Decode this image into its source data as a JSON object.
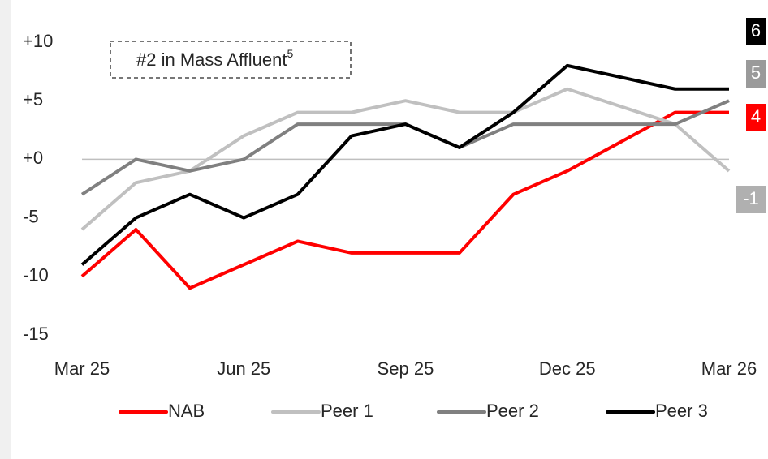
{
  "chart_data": {
    "type": "line",
    "annotation": {
      "text": "#2 in Mass Affluent",
      "superscript": "5"
    },
    "categories": [
      "Mar 25",
      null,
      null,
      "Jun 25",
      null,
      null,
      "Sep 25",
      null,
      null,
      "Dec 25",
      null,
      null,
      "Mar 26"
    ],
    "series": [
      {
        "name": "NAB",
        "color": "#ff0000",
        "label_color": "#ff0000",
        "values": [
          -10,
          -6,
          -11,
          -9,
          -7,
          -8,
          -8,
          -8,
          -3,
          -1,
          1.5,
          4,
          4
        ]
      },
      {
        "name": "Peer 1",
        "color": "#c0c0c0",
        "label_color": "#b0b0b0",
        "values": [
          -6,
          -2,
          -1,
          2,
          4,
          4,
          5,
          4,
          4,
          6,
          4.5,
          3,
          -1
        ]
      },
      {
        "name": "Peer 2",
        "color": "#808080",
        "label_color": "#9a9a9a",
        "values": [
          -3,
          0,
          -1,
          0,
          3,
          3,
          3,
          1,
          3,
          3,
          3,
          3,
          5
        ]
      },
      {
        "name": "Peer 3",
        "color": "#000000",
        "label_color": "#000000",
        "values": [
          -9,
          -5,
          -3,
          -5,
          -3,
          2,
          3,
          1,
          4,
          8,
          7,
          6,
          6
        ]
      }
    ],
    "ylim": [
      -15,
      10
    ],
    "yticks": [
      {
        "value": 10,
        "label": "+10"
      },
      {
        "value": 5,
        "label": "+5"
      },
      {
        "value": 0,
        "label": "+0"
      },
      -5,
      -10,
      -15
    ],
    "zero_line": true,
    "legend": "bottom"
  }
}
